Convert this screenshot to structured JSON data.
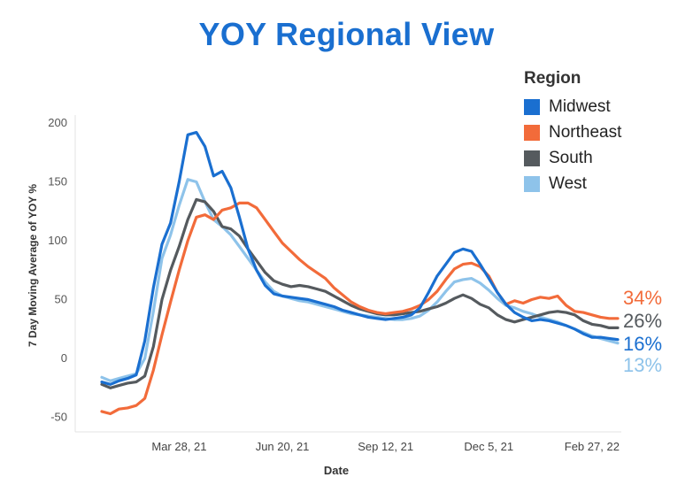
{
  "chart_data": {
    "type": "line",
    "title": "YOY Regional View",
    "xlabel": "Date",
    "ylabel": "7 Day Moving Average of YOY %",
    "x_ticks": [
      "Mar 28, 21",
      "Jun 20, 21",
      "Sep 12, 21",
      "Dec 5, 21",
      "Feb 27, 22"
    ],
    "ylim": [
      -60,
      210
    ],
    "y_ticks": [
      -50,
      0,
      50,
      100,
      150,
      200
    ],
    "grid": false,
    "legend_title": "Region",
    "legend_position": "top-right",
    "x_start": "2021-01-24",
    "x_step_days": 7,
    "series": [
      {
        "name": "Midwest",
        "color": "#1a6fd0",
        "end_label": "16%",
        "values": [
          -20,
          -22,
          -19,
          -17,
          -14,
          15,
          60,
          97,
          115,
          150,
          190,
          192,
          180,
          155,
          159,
          145,
          120,
          93,
          75,
          62,
          55,
          53,
          52,
          51,
          50,
          48,
          46,
          44,
          41,
          39,
          37,
          35,
          34,
          33,
          34,
          35,
          37,
          43,
          56,
          70,
          80,
          90,
          93,
          91,
          80,
          68,
          56,
          46,
          39,
          35,
          32,
          33,
          32,
          30,
          28,
          25,
          21,
          18,
          18,
          17,
          16
        ]
      },
      {
        "name": "Northeast",
        "color": "#f26b3a",
        "end_label": "34%",
        "values": [
          -45,
          -47,
          -43,
          -42,
          -40,
          -34,
          -10,
          20,
          48,
          75,
          100,
          120,
          122,
          118,
          126,
          128,
          132,
          132,
          128,
          118,
          108,
          98,
          91,
          84,
          78,
          73,
          68,
          60,
          54,
          48,
          44,
          41,
          39,
          38,
          39,
          40,
          42,
          45,
          50,
          57,
          67,
          76,
          80,
          81,
          78,
          70,
          56,
          46,
          49,
          47,
          50,
          52,
          51,
          53,
          45,
          40,
          39,
          37,
          35,
          34,
          34
        ]
      },
      {
        "name": "South",
        "color": "#555a5e",
        "end_label": "26%",
        "values": [
          -22,
          -25,
          -23,
          -21,
          -20,
          -15,
          10,
          50,
          75,
          95,
          118,
          135,
          133,
          125,
          112,
          110,
          104,
          93,
          83,
          73,
          66,
          63,
          61,
          62,
          61,
          59,
          57,
          53,
          49,
          45,
          42,
          40,
          38,
          37,
          37,
          38,
          39,
          40,
          42,
          44,
          47,
          51,
          54,
          51,
          46,
          43,
          37,
          33,
          31,
          33,
          35,
          37,
          39,
          40,
          39,
          37,
          32,
          29,
          28,
          26,
          26
        ]
      },
      {
        "name": "West",
        "color": "#8ec3ea",
        "end_label": "13%",
        "values": [
          -16,
          -19,
          -17,
          -15,
          -13,
          0,
          40,
          85,
          105,
          130,
          152,
          150,
          133,
          118,
          112,
          105,
          95,
          85,
          75,
          65,
          57,
          53,
          51,
          49,
          48,
          46,
          44,
          42,
          40,
          38,
          37,
          36,
          35,
          34,
          33,
          33,
          34,
          36,
          41,
          48,
          57,
          65,
          67,
          68,
          64,
          58,
          51,
          45,
          43,
          40,
          38,
          35,
          33,
          31,
          28,
          25,
          22,
          19,
          17,
          15,
          13
        ]
      }
    ]
  }
}
